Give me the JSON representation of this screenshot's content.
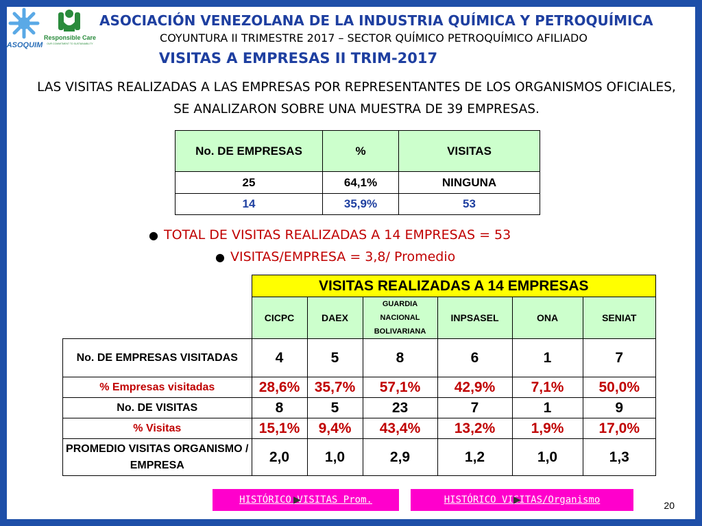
{
  "header": {
    "org": "ASOCIACIÓN VENEZOLANA DE LA INDUSTRIA QUÍMICA Y PETROQUÍMICA",
    "subtitle": "COYUNTURA II TRIMESTRE 2017 – SECTOR QUÍMICO PETROQUÍMICO AFILIADO",
    "section": "VISITAS A EMPRESAS II TRIM-2017"
  },
  "logos": {
    "asoquim": "ASOQUIM",
    "rc_brand": "Responsible Care",
    "rc_tagline": "OUR COMMITMENT TO SUSTAINABILITY"
  },
  "intro": "LAS VISITAS REALIZADAS A LAS EMPRESAS POR REPRESENTANTES DE LOS ORGANISMOS OFICIALES, SE ANALIZARON SOBRE UNA MUESTRA DE 39 EMPRESAS.",
  "summary_table": {
    "headers": [
      "No. DE EMPRESAS",
      "%",
      "VISITAS"
    ],
    "rows": [
      [
        "25",
        "64,1%",
        "NINGUNA"
      ],
      [
        "14",
        "35,9%",
        "53"
      ]
    ]
  },
  "bullets": [
    "TOTAL DE VISITAS REALIZADAS A 14 EMPRESAS  = 53",
    "VISITAS/EMPRESA = 3,8/ Promedio"
  ],
  "visits_table": {
    "title": "VISITAS REALIZADAS A 14 EMPRESAS",
    "columns": [
      "CICPC",
      "DAEX",
      "GUARDIA NACIONAL BOLIVARIANA",
      "INPSASEL",
      "ONA",
      "SENIAT"
    ],
    "rows": [
      {
        "label": "No. DE EMPRESAS VISITADAS",
        "values": [
          "4",
          "5",
          "8",
          "6",
          "1",
          "7"
        ]
      },
      {
        "label": "% Empresas visitadas",
        "values": [
          "28,6%",
          "35,7%",
          "57,1%",
          "42,9%",
          "7,1%",
          "50,0%"
        ]
      },
      {
        "label": "No. DE VISITAS",
        "values": [
          "8",
          "5",
          "23",
          "7",
          "1",
          "9"
        ]
      },
      {
        "label": "% Visitas",
        "values": [
          "15,1%",
          "9,4%",
          "43,4%",
          "13,2%",
          "1,9%",
          "17,0%"
        ]
      },
      {
        "label": "PROMEDIO VISITAS ORGANISMO / EMPRESA",
        "values": [
          "2,0",
          "1,0",
          "2,9",
          "1,2",
          "1,0",
          "1,3"
        ]
      }
    ]
  },
  "links": [
    "HISTÓRICO VISITAS Prom.",
    "HISTÓRICO VISITAS/Organismo"
  ],
  "page_number": "20",
  "colors": {
    "frame": "#1e4fa8",
    "title_blue": "#1e3fa0",
    "accent_red": "#c00000",
    "header_green": "#ccffcc",
    "title_yellow": "#ffff00",
    "link_magenta": "#ff00cc"
  }
}
